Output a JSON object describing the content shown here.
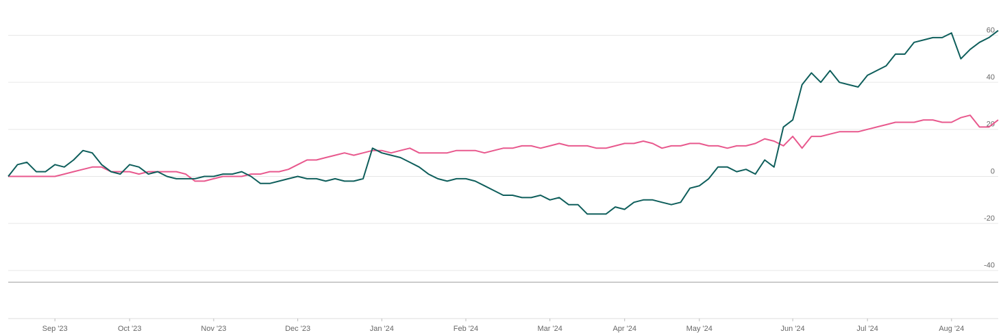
{
  "chart_data": {
    "type": "line",
    "categories": [
      null,
      null,
      null,
      null,
      null,
      "Sep '23",
      null,
      null,
      null,
      null,
      null,
      null,
      null,
      "Oct '23",
      null,
      null,
      null,
      null,
      null,
      null,
      null,
      null,
      "Nov '23",
      null,
      null,
      null,
      null,
      null,
      null,
      null,
      null,
      "Dec '23",
      null,
      null,
      null,
      null,
      null,
      null,
      null,
      null,
      "Jan '24",
      null,
      null,
      null,
      null,
      null,
      null,
      null,
      null,
      "Feb '24",
      null,
      null,
      null,
      null,
      null,
      null,
      null,
      null,
      "Mar '24",
      null,
      null,
      null,
      null,
      null,
      null,
      null,
      "Apr '24",
      null,
      null,
      null,
      null,
      null,
      null,
      null,
      "May '24",
      null,
      null,
      null,
      null,
      null,
      null,
      null,
      null,
      null,
      "Jun '24",
      null,
      null,
      null,
      null,
      null,
      null,
      null,
      "Jul '24",
      null,
      null,
      null,
      null,
      null,
      null,
      null,
      null,
      "Aug '24",
      null,
      null,
      null,
      null,
      null
    ],
    "series": [
      {
        "color": "#0e5e5b",
        "values": [
          0,
          5,
          6,
          2,
          2,
          5,
          4,
          7,
          11,
          10,
          5,
          2,
          1,
          5,
          4,
          1,
          2,
          0,
          -1,
          -1,
          -1,
          0,
          0,
          1,
          1,
          2,
          0,
          -3,
          -3,
          -2,
          -1,
          0,
          -1,
          -1,
          -2,
          -1,
          -2,
          -2,
          -1,
          12,
          10,
          9,
          8,
          6,
          4,
          1,
          -1,
          -2,
          -1,
          -1,
          -2,
          -4,
          -6,
          -8,
          -8,
          -9,
          -9,
          -8,
          -10,
          -9,
          -12,
          -12,
          -16,
          -16,
          -16,
          -13,
          -14,
          -11,
          -10,
          -10,
          -11,
          -12,
          -11,
          -5,
          -4,
          -1,
          4,
          4,
          2,
          3,
          1,
          7,
          4,
          21,
          24,
          39,
          44,
          40,
          45,
          40,
          39,
          38,
          43,
          45,
          47,
          52,
          52,
          57,
          58,
          59,
          59,
          61,
          50,
          54,
          57,
          59,
          62
        ]
      },
      {
        "color": "#e8588d",
        "values": [
          0,
          0,
          0,
          0,
          0,
          0,
          1,
          2,
          3,
          4,
          4,
          2,
          2,
          2,
          1,
          2,
          2,
          2,
          2,
          1,
          -2,
          -2,
          -1,
          0,
          0,
          0,
          1,
          1,
          2,
          2,
          3,
          5,
          7,
          7,
          8,
          9,
          10,
          9,
          10,
          11,
          11,
          10,
          11,
          12,
          10,
          10,
          10,
          10,
          11,
          11,
          11,
          10,
          11,
          12,
          12,
          13,
          13,
          12,
          13,
          14,
          13,
          13,
          13,
          12,
          12,
          13,
          14,
          14,
          15,
          14,
          12,
          13,
          13,
          14,
          14,
          13,
          13,
          12,
          13,
          13,
          14,
          16,
          15,
          13,
          17,
          12,
          17,
          17,
          18,
          19,
          19,
          19,
          20,
          21,
          22,
          23,
          23,
          23,
          24,
          24,
          23,
          23,
          25,
          26,
          21,
          21,
          24
        ]
      }
    ],
    "ylim": [
      -45,
      75
    ],
    "yticks": [
      -40,
      -20,
      0,
      20,
      40,
      60
    ],
    "y_axis_side": "right",
    "grid": true
  }
}
